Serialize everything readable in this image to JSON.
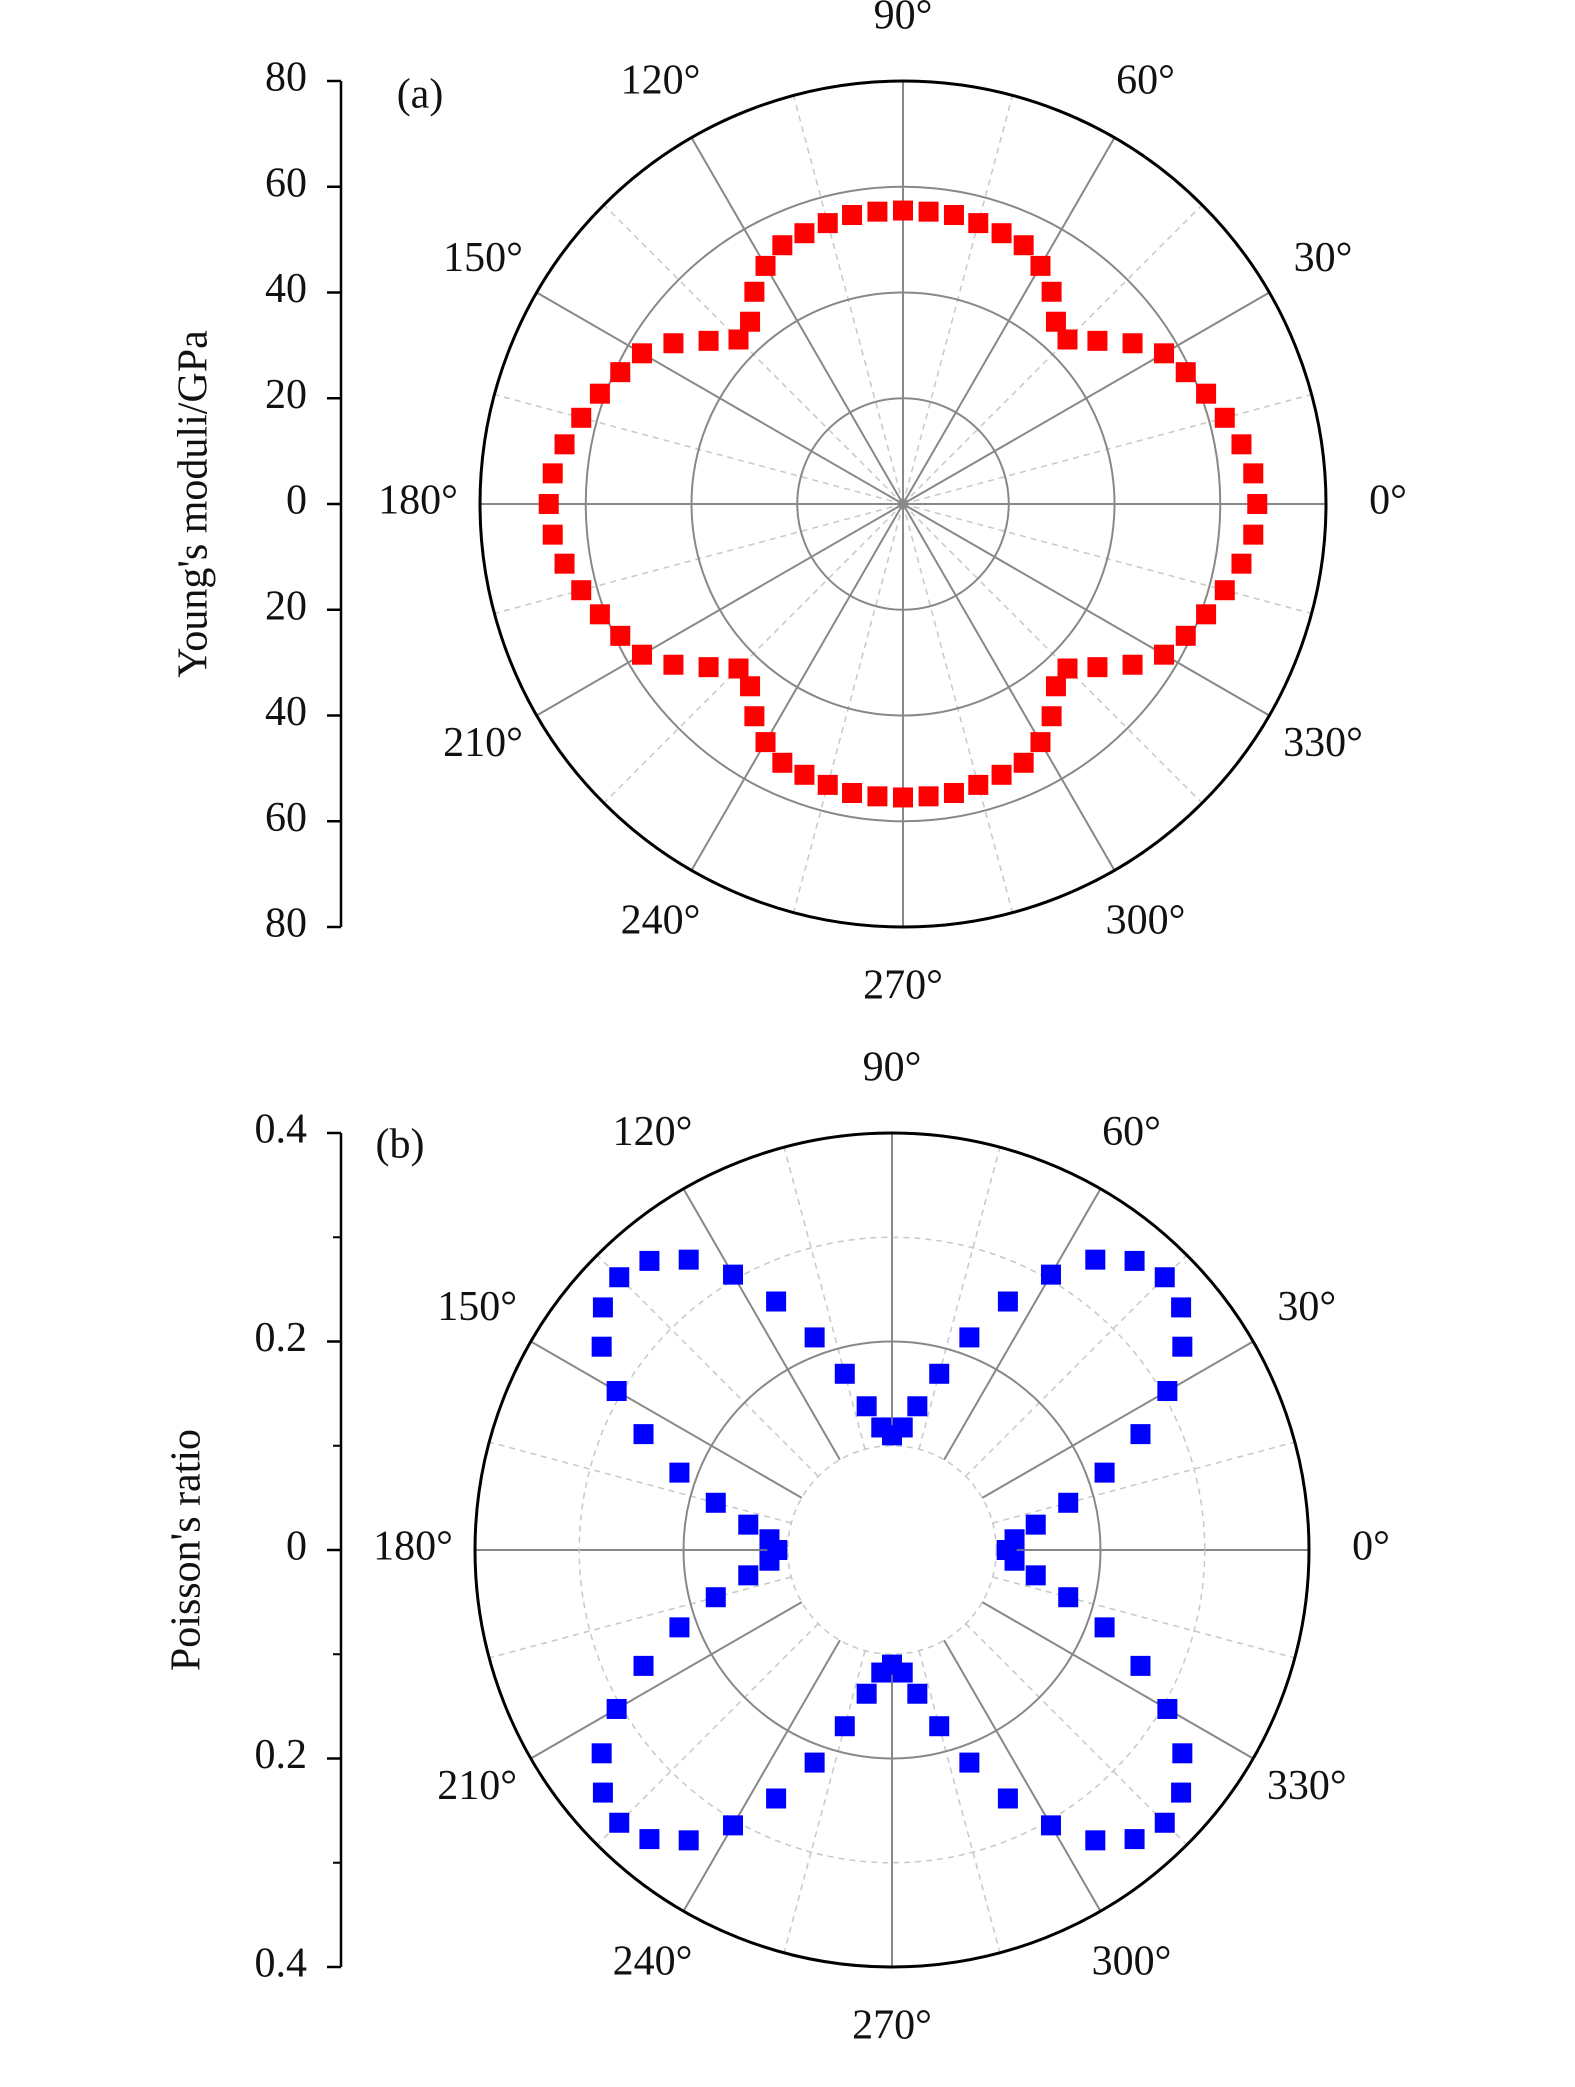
{
  "chart_data": [
    {
      "type": "polar",
      "panel_label": "(a)",
      "ylabel": "Young's moduli/GPa",
      "color": "#ff0000",
      "ylim": [
        0,
        80
      ],
      "yticks": [
        0,
        20,
        40,
        60,
        80
      ],
      "minor_yticks": [],
      "thetaticks": [
        {
          "value": 0,
          "label": "0°"
        },
        {
          "value": 30,
          "label": "30°"
        },
        {
          "value": 60,
          "label": "60°"
        },
        {
          "value": 90,
          "label": "90°"
        },
        {
          "value": 120,
          "label": "120°"
        },
        {
          "value": 150,
          "label": "150°"
        },
        {
          "value": 180,
          "label": "180°"
        },
        {
          "value": 210,
          "label": "210°"
        },
        {
          "value": 240,
          "label": "240°"
        },
        {
          "value": 270,
          "label": "270°"
        },
        {
          "value": 300,
          "label": "300°"
        },
        {
          "value": 330,
          "label": "330°"
        }
      ],
      "theta_minor_ticks": [
        15,
        45,
        75,
        105,
        135,
        165,
        195,
        225,
        255,
        285,
        315,
        345
      ],
      "theta": [
        0,
        5,
        10,
        15,
        20,
        25,
        30,
        35,
        40,
        45,
        50,
        55,
        60,
        65,
        70,
        75,
        80,
        85,
        90,
        95,
        100,
        105,
        110,
        115,
        120,
        125,
        130,
        135,
        140,
        145,
        150,
        155,
        160,
        165,
        170,
        175,
        180,
        185,
        190,
        195,
        200,
        205,
        210,
        215,
        220,
        225,
        230,
        235,
        240,
        245,
        250,
        255,
        260,
        265,
        270,
        275,
        280,
        285,
        290,
        295,
        300,
        305,
        310,
        315,
        320,
        325,
        330,
        335,
        340,
        345,
        350,
        355
      ],
      "values": [
        67,
        66.5,
        65,
        63,
        61,
        59,
        57,
        53,
        48,
        44,
        45,
        49,
        52,
        54,
        54.5,
        55,
        55.5,
        55.5,
        55.5,
        55.5,
        55.5,
        55,
        54.5,
        54,
        52,
        49,
        45,
        44,
        48,
        53,
        57,
        59,
        61,
        63,
        65,
        66.5,
        67,
        66.5,
        65,
        63,
        61,
        59,
        57,
        53,
        48,
        44,
        45,
        49,
        52,
        54,
        54.5,
        55,
        55.5,
        55.5,
        55.5,
        55.5,
        55.5,
        55,
        54.5,
        54,
        52,
        49,
        45,
        44,
        48,
        53,
        57,
        59,
        61,
        63,
        65,
        66.5
      ]
    },
    {
      "type": "polar",
      "panel_label": "(b)",
      "ylabel": "Poisson's ratio",
      "color": "#0000ff",
      "ylim": [
        0,
        0.4
      ],
      "yticks": [
        0,
        0.2,
        0.4
      ],
      "minor_yticks": [
        0.1,
        0.3
      ],
      "thetaticks": [
        {
          "value": 0,
          "label": "0°"
        },
        {
          "value": 30,
          "label": "30°"
        },
        {
          "value": 60,
          "label": "60°"
        },
        {
          "value": 90,
          "label": "90°"
        },
        {
          "value": 120,
          "label": "120°"
        },
        {
          "value": 150,
          "label": "150°"
        },
        {
          "value": 180,
          "label": "180°"
        },
        {
          "value": 210,
          "label": "210°"
        },
        {
          "value": 240,
          "label": "240°"
        },
        {
          "value": 270,
          "label": "270°"
        },
        {
          "value": 300,
          "label": "300°"
        },
        {
          "value": 330,
          "label": "330°"
        }
      ],
      "theta_minor_ticks": [
        15,
        45,
        75,
        105,
        135,
        165,
        195,
        225,
        255,
        285,
        315,
        345
      ],
      "theta": [
        0,
        5,
        10,
        15,
        20,
        25,
        30,
        35,
        40,
        45,
        50,
        55,
        60,
        65,
        70,
        75,
        80,
        85,
        90,
        95,
        100,
        105,
        110,
        115,
        120,
        125,
        130,
        135,
        140,
        145,
        150,
        155,
        160,
        165,
        170,
        175,
        180,
        185,
        190,
        195,
        200,
        205,
        210,
        215,
        220,
        225,
        230,
        235,
        240,
        245,
        250,
        255,
        260,
        265,
        270,
        275,
        280,
        285,
        290,
        295,
        300,
        305,
        310,
        315,
        320,
        325,
        330,
        335,
        340,
        345,
        350,
        355
      ],
      "values": [
        0.11,
        0.118,
        0.14,
        0.175,
        0.217,
        0.263,
        0.305,
        0.34,
        0.362,
        0.37,
        0.362,
        0.34,
        0.305,
        0.263,
        0.217,
        0.175,
        0.14,
        0.118,
        0.11,
        0.118,
        0.14,
        0.175,
        0.217,
        0.263,
        0.305,
        0.34,
        0.362,
        0.37,
        0.362,
        0.34,
        0.305,
        0.263,
        0.217,
        0.175,
        0.14,
        0.118,
        0.11,
        0.118,
        0.14,
        0.175,
        0.217,
        0.263,
        0.305,
        0.34,
        0.362,
        0.37,
        0.362,
        0.34,
        0.305,
        0.263,
        0.217,
        0.175,
        0.14,
        0.118,
        0.11,
        0.118,
        0.14,
        0.175,
        0.217,
        0.263,
        0.305,
        0.34,
        0.362,
        0.37,
        0.362,
        0.34,
        0.305,
        0.263,
        0.217,
        0.175,
        0.14,
        0.118
      ]
    }
  ]
}
